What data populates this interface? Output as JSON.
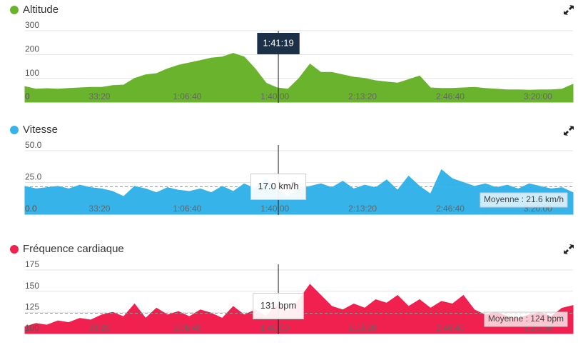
{
  "chart_data": [
    {
      "type": "area",
      "title": "Altitude",
      "color": "#6ab42d",
      "x": [
        300,
        550,
        800,
        1050,
        1300,
        1550,
        1800,
        2050,
        2300,
        2550,
        2800,
        3050,
        3300,
        3550,
        3800,
        4050,
        4300,
        4550,
        4800,
        5050,
        5300,
        5550,
        5800,
        6050,
        6300,
        6550,
        6800,
        7050,
        7300,
        7550,
        7800,
        8050,
        8300,
        8550,
        8800,
        9050,
        9300,
        9550,
        9800,
        10050,
        10300,
        10550,
        10800,
        11050,
        11300,
        11550,
        11800,
        12050,
        12300,
        12550,
        12800
      ],
      "values": [
        65,
        55,
        57,
        55,
        58,
        60,
        62,
        62,
        70,
        72,
        100,
        115,
        120,
        140,
        155,
        165,
        175,
        185,
        190,
        205,
        190,
        140,
        80,
        60,
        55,
        100,
        160,
        125,
        125,
        115,
        105,
        100,
        90,
        85,
        80,
        95,
        110,
        60,
        58,
        58,
        60,
        62,
        58,
        55,
        52,
        52,
        50,
        52,
        52,
        55,
        75
      ],
      "xlim": [
        300,
        12800
      ],
      "xticks": [
        {
          "value": 2000,
          "label": "33:20"
        },
        {
          "value": 4000,
          "label": "1:06:40"
        },
        {
          "value": 6000,
          "label": "1:40:00"
        },
        {
          "value": 8000,
          "label": "2:13:20"
        },
        {
          "value": 10000,
          "label": "2:46:40"
        },
        {
          "value": 12000,
          "label": "3:20:00"
        }
      ],
      "ylim": [
        0,
        300
      ],
      "yticks": [
        0,
        100,
        200,
        300
      ],
      "grid": true,
      "cursor_x": 6079,
      "cursor_label": "1:41:19"
    },
    {
      "type": "area",
      "title": "Vitesse",
      "color": "#36b3e8",
      "x": [
        300,
        550,
        800,
        1050,
        1300,
        1550,
        1800,
        2050,
        2300,
        2550,
        2800,
        3050,
        3300,
        3550,
        3800,
        4050,
        4300,
        4550,
        4800,
        5050,
        5300,
        5550,
        5800,
        6050,
        6300,
        6550,
        6800,
        7050,
        7300,
        7550,
        7800,
        8050,
        8300,
        8550,
        8800,
        9050,
        9300,
        9550,
        9800,
        10050,
        10300,
        10550,
        10800,
        11050,
        11300,
        11550,
        11800,
        12050,
        12300,
        12550,
        12800
      ],
      "values": [
        22,
        20,
        21,
        22,
        20,
        23,
        21,
        20,
        18,
        14,
        22,
        20,
        17,
        21,
        19,
        18,
        20,
        17,
        22,
        18,
        24,
        20,
        28,
        19,
        14,
        20,
        22,
        24,
        21,
        26,
        20,
        23,
        21,
        27,
        19,
        30,
        22,
        16,
        35,
        28,
        25,
        22,
        24,
        21,
        23,
        20,
        24,
        22,
        20,
        21,
        17
      ],
      "xlim": [
        300,
        12800
      ],
      "xticks": [
        {
          "value": 2000,
          "label": "33:20"
        },
        {
          "value": 4000,
          "label": "1:06:40"
        },
        {
          "value": 6000,
          "label": "1:40:00"
        },
        {
          "value": 8000,
          "label": "2:13:20"
        },
        {
          "value": 10000,
          "label": "2:46:40"
        },
        {
          "value": 12000,
          "label": "3:20:00"
        }
      ],
      "ylim": [
        0,
        50
      ],
      "yticks": [
        {
          "value": 0,
          "label": "0.0"
        },
        {
          "value": 25,
          "label": "25.0"
        },
        {
          "value": 50,
          "label": "50.0"
        }
      ],
      "grid": true,
      "cursor_x": 6079,
      "cursor_label": "17.0 km/h",
      "average": 21.6,
      "average_label": "Moyenne : 21.6 km/h"
    },
    {
      "type": "area",
      "title": "Fréquence cardiaque",
      "color": "#f0214f",
      "x": [
        300,
        550,
        800,
        1050,
        1300,
        1550,
        1800,
        2050,
        2300,
        2550,
        2800,
        3050,
        3300,
        3550,
        3800,
        4050,
        4300,
        4550,
        4800,
        5050,
        5300,
        5550,
        5800,
        6050,
        6300,
        6550,
        6800,
        7050,
        7300,
        7550,
        7800,
        8050,
        8300,
        8550,
        8800,
        9050,
        9300,
        9550,
        9800,
        10050,
        10300,
        10550,
        10800,
        11050,
        11300,
        11550,
        11800,
        12050,
        12300,
        12550,
        12800
      ],
      "values": [
        108,
        112,
        110,
        115,
        113,
        118,
        116,
        122,
        125,
        120,
        135,
        118,
        130,
        122,
        126,
        120,
        128,
        124,
        118,
        132,
        122,
        128,
        120,
        135,
        126,
        140,
        158,
        145,
        132,
        128,
        135,
        130,
        140,
        136,
        145,
        132,
        140,
        130,
        138,
        135,
        145,
        128,
        122,
        125,
        120,
        118,
        122,
        125,
        120,
        130,
        133
      ],
      "xlim": [
        300,
        12800
      ],
      "xticks": [
        {
          "value": 2000,
          "label": "33:20"
        },
        {
          "value": 4000,
          "label": "1:06:40"
        },
        {
          "value": 6000,
          "label": "1:40:00"
        },
        {
          "value": 8000,
          "label": "2:13:20"
        },
        {
          "value": 10000,
          "label": "2:46:40"
        },
        {
          "value": 12000,
          "label": "3:20:00"
        }
      ],
      "ylim": [
        100,
        175
      ],
      "yticks": [
        100,
        125,
        150,
        175
      ],
      "grid": true,
      "cursor_x": 6079,
      "cursor_label": "131 bpm",
      "average": 124,
      "average_label": "Moyenne : 124 bpm"
    }
  ]
}
